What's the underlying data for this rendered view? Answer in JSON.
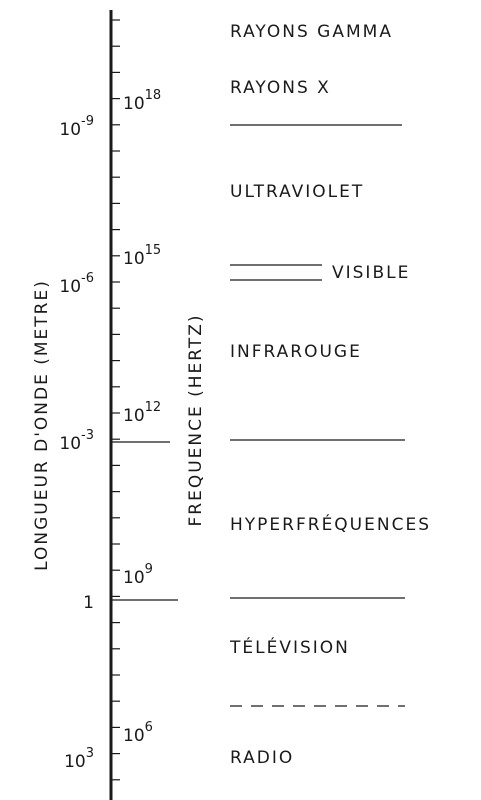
{
  "axes": {
    "wavelength_title": "LONGUEUR D'ONDE (METRE)",
    "frequency_title": "FREQUENCE (HERTZ)"
  },
  "wavelength_labels": [
    {
      "base": "10",
      "exponent": "-9"
    },
    {
      "base": "10",
      "exponent": "-6"
    },
    {
      "base": "10",
      "exponent": "-3"
    },
    {
      "base": "1"
    },
    {
      "base": "10",
      "exponent": "3"
    }
  ],
  "frequency_labels": [
    {
      "base": "10",
      "exponent": "18"
    },
    {
      "base": "10",
      "exponent": "15"
    },
    {
      "base": "10",
      "exponent": "12"
    },
    {
      "base": "10",
      "exponent": "9"
    },
    {
      "base": "10",
      "exponent": "6"
    }
  ],
  "bands": [
    "RAYONS GAMMA",
    "RAYONS X",
    "ULTRAVIOLET",
    "VISIBLE",
    "INFRAROUGE",
    "HYPERFRÉQUENCES",
    "TÉLÉVISION",
    "RADIO"
  ]
}
